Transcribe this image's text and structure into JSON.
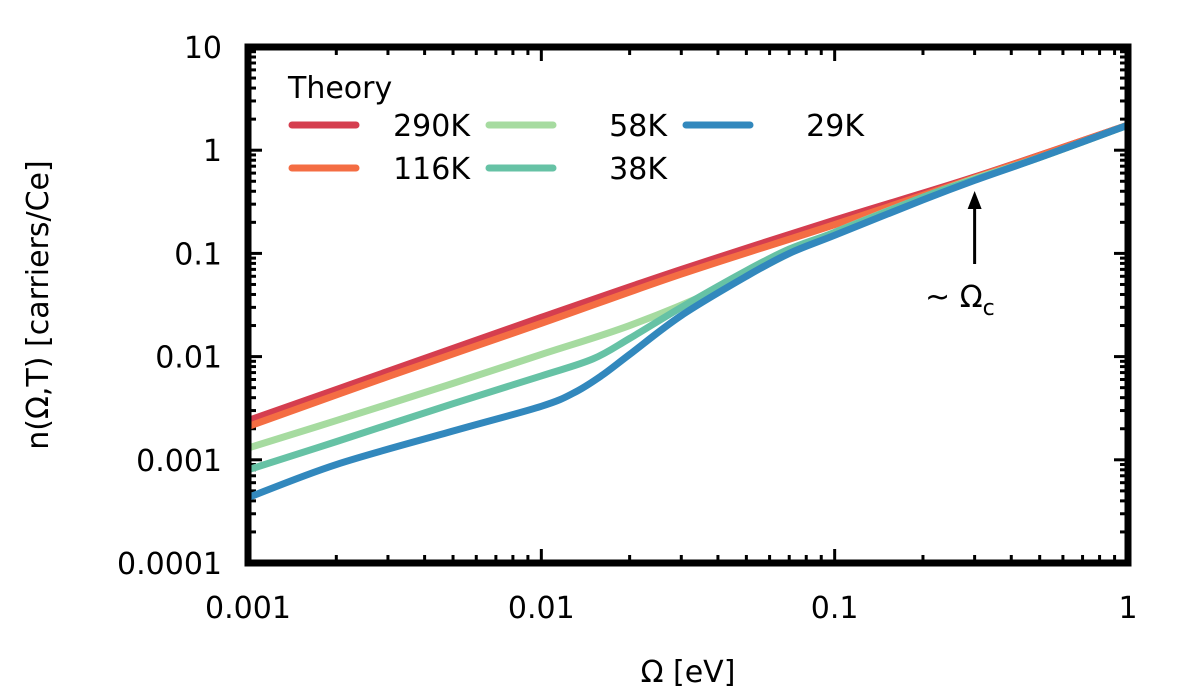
{
  "chart_data": {
    "type": "line",
    "xscale": "log",
    "yscale": "log",
    "xlim": [
      0.001,
      1
    ],
    "ylim": [
      0.0001,
      10
    ],
    "xlabel": "Ω [eV]",
    "ylabel": "n(Ω,T) [carriers/Ce]",
    "x_ticks": [
      0.001,
      0.01,
      0.1,
      1
    ],
    "x_tick_labels": [
      "0.001",
      "0.01",
      "0.1",
      "1"
    ],
    "y_ticks": [
      0.0001,
      0.001,
      0.01,
      0.1,
      1,
      10
    ],
    "y_tick_labels": [
      "0.0001",
      "0.001",
      "0.01",
      "0.1",
      "1",
      "10"
    ],
    "legend_title": "Theory",
    "legend_position": "top-left",
    "series": [
      {
        "name": "290K",
        "color": "#d53e4f",
        "x": [
          0.001,
          0.003,
          0.01,
          0.03,
          0.1,
          0.3,
          1
        ],
        "y": [
          0.0024,
          0.0072,
          0.024,
          0.07,
          0.21,
          0.55,
          1.75
        ]
      },
      {
        "name": "116K",
        "color": "#f46d43",
        "x": [
          0.001,
          0.003,
          0.01,
          0.03,
          0.1,
          0.3,
          1
        ],
        "y": [
          0.0021,
          0.0064,
          0.021,
          0.063,
          0.19,
          0.54,
          1.75
        ]
      },
      {
        "name": "58K",
        "color": "#a6dba0",
        "x": [
          0.001,
          0.002,
          0.005,
          0.01,
          0.02,
          0.04,
          0.07,
          0.1,
          0.2,
          0.3,
          0.5,
          1
        ],
        "y": [
          0.0013,
          0.0024,
          0.0055,
          0.0105,
          0.02,
          0.045,
          0.1,
          0.16,
          0.35,
          0.53,
          0.85,
          1.75
        ]
      },
      {
        "name": "38K",
        "color": "#66c2a5",
        "x": [
          0.001,
          0.002,
          0.005,
          0.01,
          0.015,
          0.02,
          0.03,
          0.05,
          0.07,
          0.1,
          0.2,
          0.3,
          0.5,
          1
        ],
        "y": [
          0.0008,
          0.0015,
          0.0035,
          0.0065,
          0.0095,
          0.015,
          0.03,
          0.068,
          0.11,
          0.16,
          0.35,
          0.52,
          0.85,
          1.75
        ]
      },
      {
        "name": "29K",
        "color": "#3288bd",
        "x": [
          0.001,
          0.002,
          0.005,
          0.01,
          0.013,
          0.016,
          0.02,
          0.03,
          0.05,
          0.07,
          0.1,
          0.2,
          0.3,
          0.5,
          1
        ],
        "y": [
          0.00043,
          0.0009,
          0.0019,
          0.0033,
          0.0045,
          0.0065,
          0.0105,
          0.025,
          0.06,
          0.1,
          0.15,
          0.33,
          0.51,
          0.85,
          1.75
        ]
      }
    ],
    "legend_order": [
      "290K",
      "116K",
      "58K",
      "38K",
      "29K"
    ],
    "annotation": {
      "text_prefix": "~ ",
      "text": "Ω",
      "subscript": "c",
      "arrow_to_x": 0.3,
      "arrow_to_y": 0.55
    }
  }
}
